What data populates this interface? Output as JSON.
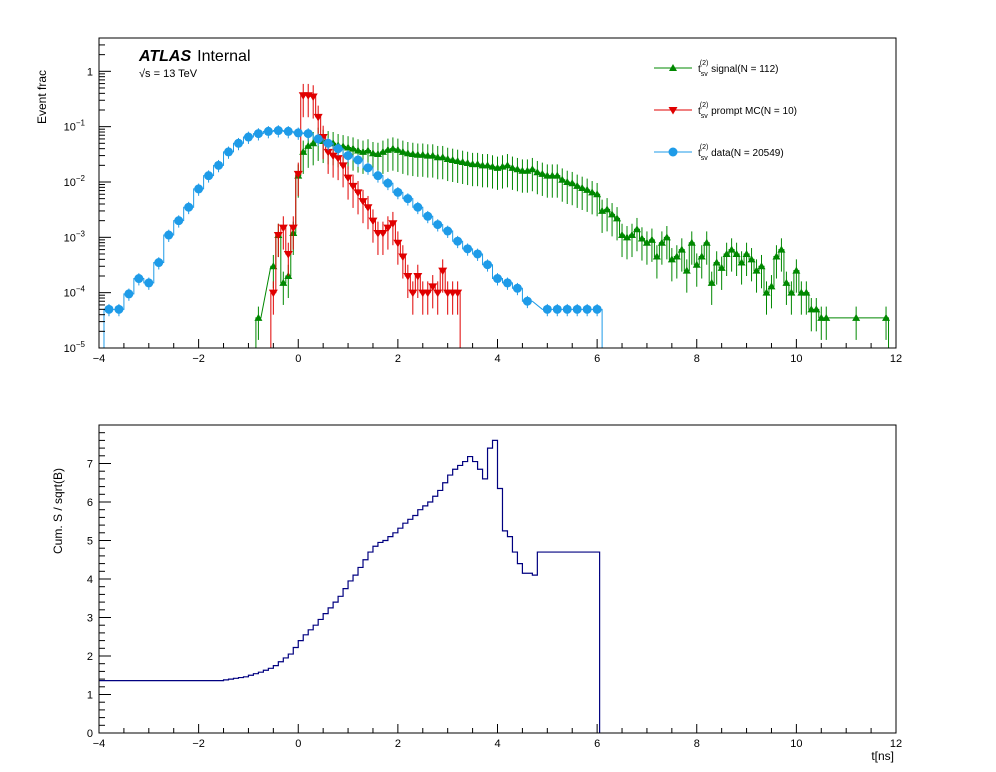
{
  "chart_data": [
    {
      "type": "line",
      "panel": "top",
      "title": "",
      "ylabel": "Event frac",
      "xlabel": "",
      "xlim": [
        -4,
        12
      ],
      "ylim": [
        1e-05,
        4
      ],
      "yscale": "log",
      "x_ticks": [
        "−4",
        "−2",
        "0",
        "2",
        "4",
        "6",
        "8",
        "10",
        "12"
      ],
      "y_ticks": [
        {
          "base": "10",
          "exp": "−5",
          "v": 1e-05
        },
        {
          "base": "10",
          "exp": "−4",
          "v": 0.0001
        },
        {
          "base": "10",
          "exp": "−3",
          "v": 0.001
        },
        {
          "base": "10",
          "exp": "−2",
          "v": 0.01
        },
        {
          "base": "10",
          "exp": "−1",
          "v": 0.1
        },
        {
          "base": "1",
          "exp": "",
          "v": 1
        }
      ],
      "atlas_label": "ATLAS",
      "internal_label": "Internal",
      "energy_label": "√s = 13 TeV",
      "grid": false,
      "legend_position": "top-right",
      "legend": [
        {
          "sym": "t",
          "sub": "sv",
          "sup": "(2)",
          "text": " signal(N = 112)",
          "color": "#008800",
          "marker": "triangle-up"
        },
        {
          "sym": "t",
          "sub": "sv",
          "sup": "(2)",
          "text": " prompt MC(N = 10)",
          "color": "#e00000",
          "marker": "triangle-down"
        },
        {
          "sym": "t",
          "sub": "sv",
          "sup": "(2)",
          "text": " data(N = 20549)",
          "color": "#1e9be8",
          "marker": "circle"
        }
      ],
      "series": [
        {
          "name": "t_sv^(2) signal(N = 112)",
          "color": "#008800",
          "marker": "triangle-up",
          "x": [
            -0.8,
            -0.5,
            -0.4,
            -0.3,
            -0.2,
            -0.1,
            0.0,
            0.1,
            0.2,
            0.3,
            0.4,
            0.5,
            0.6,
            0.7,
            0.8,
            0.9,
            1.0,
            1.1,
            1.2,
            1.3,
            1.4,
            1.5,
            1.6,
            1.7,
            1.8,
            1.9,
            2.0,
            2.1,
            2.2,
            2.3,
            2.4,
            2.5,
            2.6,
            2.7,
            2.8,
            2.9,
            3.0,
            3.1,
            3.2,
            3.3,
            3.4,
            3.5,
            3.6,
            3.7,
            3.8,
            3.9,
            4.0,
            4.1,
            4.2,
            4.3,
            4.4,
            4.5,
            4.6,
            4.7,
            4.8,
            4.9,
            5.0,
            5.1,
            5.2,
            5.3,
            5.4,
            5.5,
            5.6,
            5.7,
            5.8,
            5.9,
            6.0,
            6.1,
            6.2,
            6.3,
            6.4,
            6.5,
            6.6,
            6.7,
            6.8,
            6.9,
            7.0,
            7.1,
            7.2,
            7.3,
            7.4,
            7.5,
            7.6,
            7.7,
            7.8,
            7.9,
            8.0,
            8.1,
            8.2,
            8.3,
            8.4,
            8.5,
            8.6,
            8.7,
            8.8,
            8.9,
            9.0,
            9.1,
            9.2,
            9.3,
            9.4,
            9.5,
            9.6,
            9.7,
            9.8,
            9.9,
            10.0,
            10.1,
            10.2,
            10.3,
            10.4,
            10.5,
            10.6,
            11.2,
            11.8
          ],
          "values": [
            3.5e-05,
            0.0003,
            0.0011,
            0.00015,
            0.0002,
            0.0012,
            0.013,
            0.035,
            0.045,
            0.05,
            0.06,
            0.055,
            0.052,
            0.05,
            0.046,
            0.044,
            0.042,
            0.04,
            0.037,
            0.035,
            0.037,
            0.033,
            0.032,
            0.035,
            0.038,
            0.04,
            0.038,
            0.035,
            0.033,
            0.032,
            0.031,
            0.031,
            0.03,
            0.03,
            0.028,
            0.028,
            0.026,
            0.025,
            0.024,
            0.023,
            0.022,
            0.021,
            0.021,
            0.02,
            0.02,
            0.019,
            0.018,
            0.019,
            0.02,
            0.018,
            0.017,
            0.016,
            0.016,
            0.017,
            0.015,
            0.014,
            0.013,
            0.013,
            0.013,
            0.011,
            0.01,
            0.0095,
            0.0085,
            0.0078,
            0.0072,
            0.0065,
            0.006,
            0.003,
            0.0032,
            0.0026,
            0.0022,
            0.0011,
            0.001,
            0.0011,
            0.0014,
            0.00095,
            0.0008,
            0.0009,
            0.00045,
            0.0008,
            0.001,
            0.0004,
            0.00045,
            0.0006,
            0.00025,
            0.0008,
            0.00032,
            0.00045,
            0.0008,
            0.00015,
            0.00035,
            0.00028,
            0.0005,
            0.0006,
            0.0005,
            0.00035,
            0.0005,
            0.0004,
            0.00025,
            0.0003,
            0.0001,
            0.00013,
            0.00045,
            0.0006,
            0.00015,
            0.0001,
            0.00025,
            0.0001,
            0.0001,
            5e-05,
            5e-05,
            3.5e-05,
            3.5e-05,
            3.5e-05,
            3.5e-05
          ]
        },
        {
          "name": "t_sv^(2) prompt MC(N = 10)",
          "color": "#e00000",
          "marker": "triangle-down",
          "x": [
            -0.5,
            -0.4,
            -0.3,
            -0.2,
            -0.1,
            0.0,
            0.1,
            0.2,
            0.3,
            0.4,
            0.5,
            0.6,
            0.7,
            0.8,
            0.9,
            1.0,
            1.1,
            1.2,
            1.3,
            1.4,
            1.5,
            1.6,
            1.7,
            1.8,
            1.9,
            2.0,
            2.1,
            2.2,
            2.3,
            2.4,
            2.5,
            2.6,
            2.7,
            2.8,
            2.9,
            3.0,
            3.1,
            3.2,
            3.3,
            3.4,
            3.5
          ],
          "values": [
            0.0001,
            0.0011,
            0.0015,
            0.0005,
            0.0015,
            0.014,
            0.37,
            0.37,
            0.35,
            0.15,
            0.065,
            0.035,
            0.03,
            0.027,
            0.02,
            0.012,
            0.0085,
            0.0065,
            0.0045,
            0.0035,
            0.002,
            0.0012,
            0.0012,
            0.0015,
            0.0018,
            0.0008,
            0.00045,
            0.0002,
            0.0001,
            0.0002,
            0.0001,
            0.0001,
            0.00013,
            0.0001,
            0.00025,
            0.0001,
            0.0001,
            0.0001,
            1e-05,
            1e-05,
            1e-05
          ]
        },
        {
          "name": "t_sv^(2) data(N = 20549)",
          "color": "#1e9be8",
          "marker": "circle",
          "x": [
            -3.8,
            -3.6,
            -3.4,
            -3.2,
            -3.0,
            -2.8,
            -2.6,
            -2.4,
            -2.2,
            -2.0,
            -1.8,
            -1.6,
            -1.4,
            -1.2,
            -1.0,
            -0.8,
            -0.6,
            -0.4,
            -0.2,
            0.0,
            0.2,
            0.4,
            0.6,
            0.8,
            1.0,
            1.2,
            1.4,
            1.6,
            1.8,
            2.0,
            2.2,
            2.4,
            2.6,
            2.8,
            3.0,
            3.2,
            3.4,
            3.6,
            3.8,
            4.0,
            4.2,
            4.4,
            4.6,
            5.0,
            5.2,
            5.4,
            5.6,
            5.8,
            6.0
          ],
          "values": [
            5e-05,
            5e-05,
            9.5e-05,
            0.00018,
            0.00015,
            0.00035,
            0.0011,
            0.002,
            0.0035,
            0.0075,
            0.013,
            0.02,
            0.035,
            0.05,
            0.065,
            0.075,
            0.082,
            0.085,
            0.082,
            0.077,
            0.075,
            0.06,
            0.05,
            0.04,
            0.03,
            0.025,
            0.018,
            0.013,
            0.0095,
            0.0065,
            0.005,
            0.0035,
            0.0024,
            0.0017,
            0.0013,
            0.00085,
            0.00062,
            0.0005,
            0.00032,
            0.00018,
            0.00015,
            0.00012,
            7e-05,
            5e-05,
            5e-05,
            5e-05,
            5e-05,
            5e-05,
            5e-05
          ]
        }
      ]
    },
    {
      "type": "line",
      "panel": "bottom",
      "title": "",
      "ylabel": "Cum. S / sqrt(B)",
      "xlabel": "t[ns]",
      "xlim": [
        -4,
        12
      ],
      "ylim": [
        0,
        8
      ],
      "yscale": "linear",
      "x_ticks": [
        "−4",
        "−2",
        "0",
        "2",
        "4",
        "6",
        "8",
        "10",
        "12"
      ],
      "y_ticks": [
        "0",
        "1",
        "2",
        "3",
        "4",
        "5",
        "6",
        "7"
      ],
      "grid": false,
      "series": [
        {
          "name": "",
          "color": "#000080",
          "bin_edges": [
            -4.0,
            -1.5,
            -1.4,
            -1.3,
            -1.2,
            -1.1,
            -1.0,
            -0.9,
            -0.8,
            -0.7,
            -0.6,
            -0.5,
            -0.4,
            -0.3,
            -0.2,
            -0.1,
            0.0,
            0.1,
            0.2,
            0.3,
            0.4,
            0.5,
            0.6,
            0.7,
            0.8,
            0.9,
            1.0,
            1.1,
            1.2,
            1.3,
            1.4,
            1.5,
            1.6,
            1.7,
            1.8,
            1.9,
            2.0,
            2.1,
            2.2,
            2.3,
            2.4,
            2.5,
            2.6,
            2.7,
            2.8,
            2.9,
            3.0,
            3.1,
            3.2,
            3.3,
            3.4,
            3.5,
            3.6,
            3.7,
            3.8,
            3.9,
            4.0,
            4.1,
            4.2,
            4.3,
            4.4,
            4.5,
            4.6,
            4.7,
            4.8,
            4.9,
            5.0,
            5.1,
            5.2,
            5.3,
            5.4,
            5.5,
            5.6,
            5.7,
            5.8,
            5.9,
            6.0,
            6.05
          ],
          "values": [
            1.36,
            1.38,
            1.4,
            1.42,
            1.44,
            1.46,
            1.5,
            1.54,
            1.58,
            1.63,
            1.68,
            1.75,
            1.85,
            1.95,
            2.05,
            2.22,
            2.4,
            2.55,
            2.68,
            2.8,
            2.95,
            3.1,
            3.25,
            3.4,
            3.55,
            3.75,
            3.95,
            4.1,
            4.3,
            4.5,
            4.7,
            4.85,
            4.95,
            5.0,
            5.1,
            5.2,
            5.32,
            5.45,
            5.55,
            5.65,
            5.8,
            5.9,
            6.0,
            6.15,
            6.3,
            6.5,
            6.7,
            6.85,
            6.95,
            7.05,
            7.18,
            7.05,
            6.85,
            6.6,
            7.4,
            7.6,
            6.35,
            5.25,
            5.1,
            4.7,
            4.4,
            4.15,
            4.15,
            4.1,
            4.7,
            4.7,
            4.7,
            4.7,
            4.7,
            4.7,
            4.7,
            4.7,
            4.7,
            4.7,
            4.7,
            4.7,
            4.7
          ]
        }
      ]
    }
  ]
}
